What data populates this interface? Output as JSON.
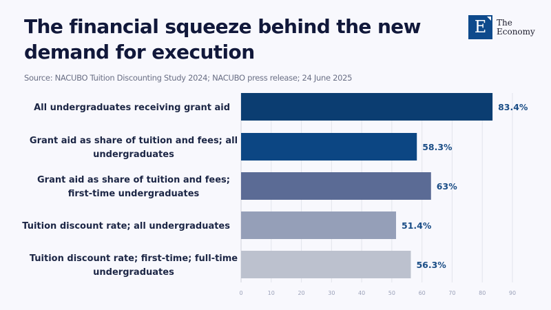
{
  "header": {
    "title": "The financial squeeze behind the new demand for execution",
    "source": "Source: NACUBO Tuition Discounting Study 2024; NACUBO press release; 24 June 2025"
  },
  "logo": {
    "letter": "E",
    "line1": "The",
    "line2": "Economy",
    "icon": "the-economy-logo-icon"
  },
  "chart_data": {
    "type": "bar",
    "orientation": "horizontal",
    "title": "The financial squeeze behind the new demand for execution",
    "xlabel": "",
    "ylabel": "",
    "xlim": [
      0,
      90
    ],
    "grid": true,
    "xticks": [
      0,
      10,
      20,
      30,
      40,
      50,
      60,
      70,
      80,
      90
    ],
    "categories": [
      [
        "All undergraduates receiving grant aid"
      ],
      [
        "Grant aid as share of tuition and fees; all",
        "undergraduates"
      ],
      [
        "Grant aid as share of tuition and fees;",
        "first-time undergraduates"
      ],
      [
        "Tuition discount rate; all undergraduates"
      ],
      [
        "Tuition discount rate; first-time; full-time",
        "undergraduates"
      ]
    ],
    "values": [
      83.4,
      58.3,
      63,
      51.4,
      56.3
    ],
    "value_labels": [
      "83.4%",
      "58.3%",
      "63%",
      "51.4%",
      "56.3%"
    ],
    "colors": [
      "#0b3d71",
      "#0c4683",
      "#5b6b95",
      "#959fb8",
      "#bcc1ce"
    ],
    "value_label_color": "#1a4d86",
    "legend": "none"
  }
}
